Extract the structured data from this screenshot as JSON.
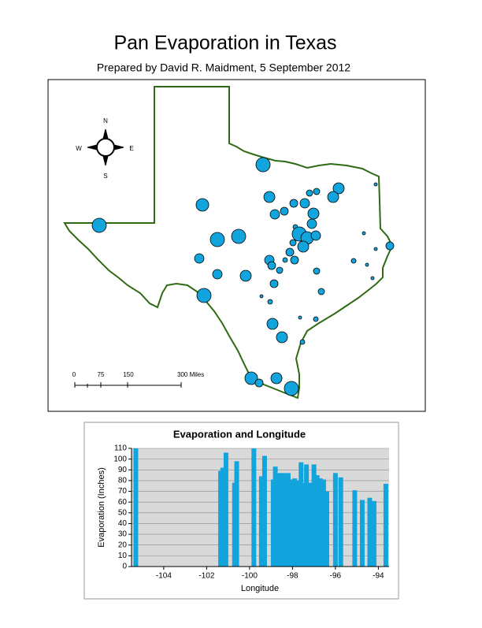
{
  "header": {
    "title": "Pan Evaporation in Texas",
    "subtitle": "Prepared by David R. Maidment, 5 September 2012"
  },
  "map": {
    "compass": {
      "n": "N",
      "e": "E",
      "s": "S",
      "w": "W"
    },
    "scale_bar": [
      "0",
      "75",
      "150",
      "300 Miles"
    ]
  },
  "chart_data": {
    "type": "bar",
    "title": "Evaporation and Longitude",
    "x_label": "Longitude",
    "y_label": "Evaporation (Inches)",
    "color": "#12a5dd",
    "x": [
      -105.3,
      -101.35,
      -101.25,
      -101.1,
      -100.7,
      -100.6,
      -99.8,
      -99.45,
      -99.3,
      -98.9,
      -98.8,
      -98.6,
      -98.4,
      -98.2,
      -98.05,
      -97.9,
      -97.75,
      -97.6,
      -97.45,
      -97.35,
      -97.2,
      -97.0,
      -96.85,
      -96.7,
      -96.55,
      -96.4,
      -96.0,
      -95.75,
      -95.1,
      -94.75,
      -94.4,
      -94.2,
      -93.65
    ],
    "values": [
      110,
      89,
      92,
      106,
      78,
      98,
      110,
      84,
      103,
      81,
      93,
      87,
      87,
      87,
      81,
      82,
      80,
      97,
      78,
      95,
      78,
      95,
      85,
      82,
      81,
      70,
      87,
      83,
      71,
      62,
      64,
      61,
      77
    ],
    "xlim": [
      -105.5,
      -93.5
    ],
    "xticks": [
      -104,
      -102,
      -100,
      -98,
      -96,
      -94
    ],
    "ylim": [
      0,
      110
    ],
    "yticks": [
      0,
      10,
      20,
      30,
      40,
      50,
      60,
      70,
      80,
      90,
      100,
      110
    ],
    "grid": true
  }
}
